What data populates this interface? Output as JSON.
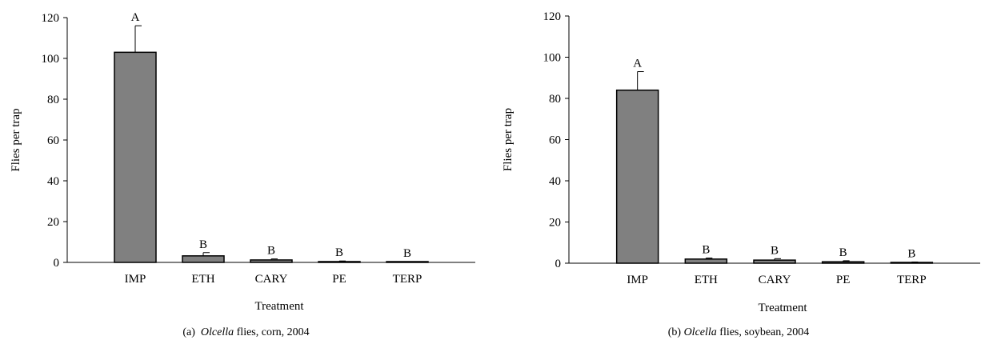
{
  "chart_data": [
    {
      "type": "bar",
      "caption": {
        "label": "(a)",
        "genus": "Olcella",
        "rest": "flies, corn, 2004"
      },
      "categories": [
        "IMP",
        "ETH",
        "CARY",
        "PE",
        "TERP"
      ],
      "values": [
        103,
        3.2,
        1.2,
        0.4,
        0.1
      ],
      "errors": [
        13,
        1.6,
        0.5,
        0.3,
        0.2
      ],
      "letters": [
        "A",
        "B",
        "B",
        "B",
        "B"
      ],
      "xlabel": "Treatment",
      "ylabel": "Flies per trap",
      "ylim": [
        0,
        120
      ],
      "yticks": [
        "0",
        "20",
        "40",
        "60",
        "80",
        "100",
        "120"
      ],
      "bar_color": "#808080",
      "grid": false,
      "legend": "none"
    },
    {
      "type": "bar",
      "caption": {
        "label": "(b)",
        "genus": "Olcella",
        "rest": "flies, soybean, 2004"
      },
      "categories": [
        "IMP",
        "ETH",
        "CARY",
        "PE",
        "TERP"
      ],
      "values": [
        84,
        2,
        1.5,
        0.7,
        0.3
      ],
      "errors": [
        9,
        0.5,
        0.7,
        0.5,
        0.3
      ],
      "letters": [
        "A",
        "B",
        "B",
        "B",
        "B"
      ],
      "xlabel": "Treatment",
      "ylabel": "Flies per trap",
      "ylim": [
        0,
        120
      ],
      "yticks": [
        "0",
        "20",
        "40",
        "60",
        "80",
        "100",
        "120"
      ],
      "bar_color": "#808080",
      "grid": false,
      "legend": "none"
    }
  ]
}
